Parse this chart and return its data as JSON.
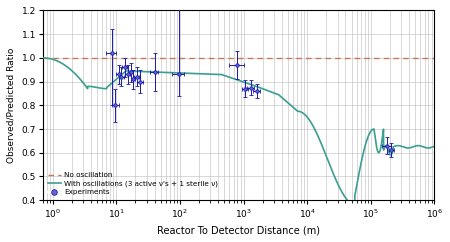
{
  "title": "",
  "xlabel": "Reactor To Detector Distance (m)",
  "ylabel": "Observed/Predicted Ratio",
  "xlim": [
    0.7,
    1000000.0
  ],
  "ylim": [
    0.4,
    1.2
  ],
  "yticks": [
    0.4,
    0.5,
    0.6,
    0.7,
    0.8,
    0.9,
    1.0,
    1.1,
    1.2
  ],
  "no_osc_color": "#c8785a",
  "osc_color": "#3a9e90",
  "exp_color": "#1a1aaa",
  "exp_face": "#6666cc",
  "legend_labels": [
    "No oscillation",
    "With oscillations (3 active ν's + 1 sterile ν)",
    "Experiments"
  ],
  "background_color": "#ffffff",
  "grid_color": "#bbbbbb"
}
